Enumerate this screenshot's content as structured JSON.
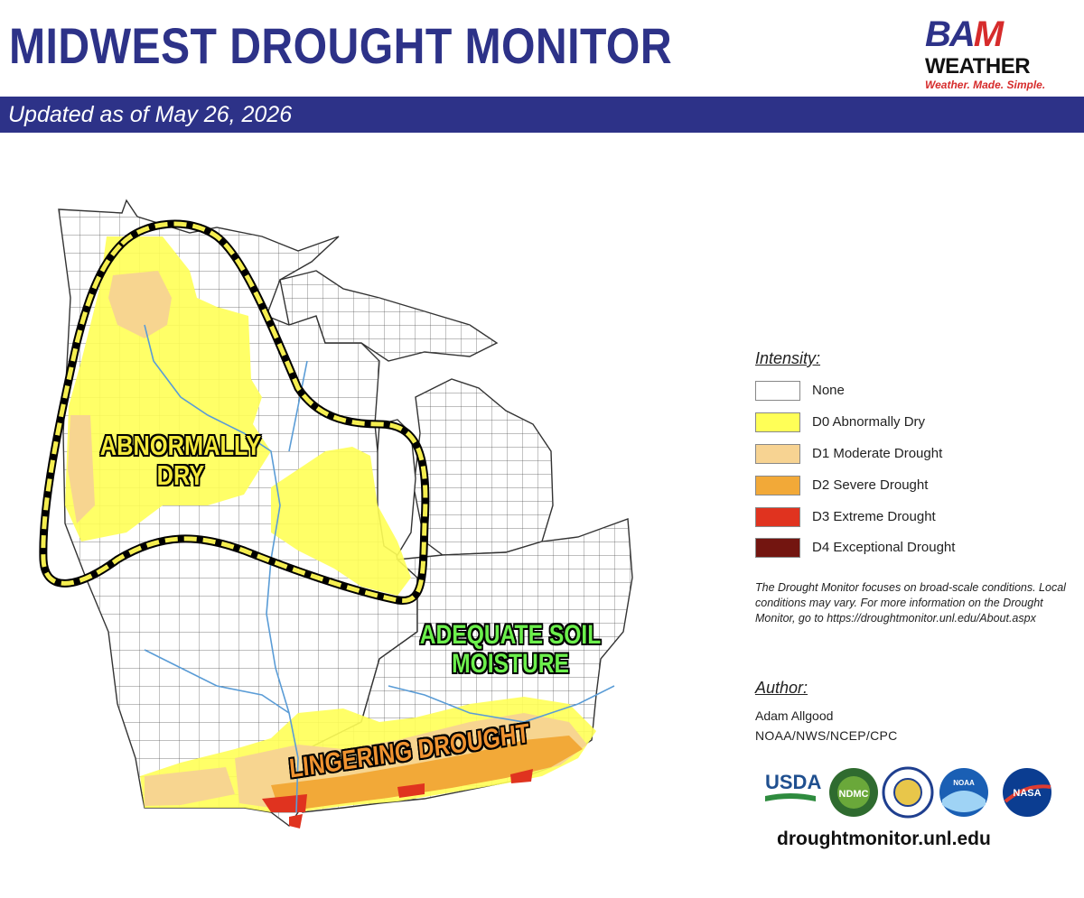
{
  "header": {
    "title": "MIDWEST DROUGHT MONITOR",
    "banner": "Updated as of May 26, 2026"
  },
  "brand_logo": {
    "mark_a": "BA",
    "mark_b": "M",
    "word": "WEATHER",
    "tagline": "Weather. Made. Simple."
  },
  "map": {
    "labels": {
      "abnormally_dry": "ABNORMALLY\nDRY",
      "adequate_soil": "ADEQUATE SOIL\nMOISTURE",
      "lingering_drought": "LINGERING DROUGHT"
    },
    "outline_color": "#f5ee50"
  },
  "legend": {
    "title": "Intensity:",
    "items": [
      {
        "label": "None",
        "color": "#ffffff"
      },
      {
        "label": "D0 Abnormally Dry",
        "color": "#ffff57"
      },
      {
        "label": "D1 Moderate Drought",
        "color": "#f7d392"
      },
      {
        "label": "D2 Severe Drought",
        "color": "#f2a938"
      },
      {
        "label": "D3 Extreme Drought",
        "color": "#e0331f"
      },
      {
        "label": "D4 Exceptional Drought",
        "color": "#731510"
      }
    ],
    "note": "The Drought Monitor focuses on broad-scale conditions. Local conditions may vary. For more information on the Drought Monitor, go to https://droughtmonitor.unl.edu/About.aspx"
  },
  "author": {
    "title": "Author:",
    "name": "Adam Allgood",
    "org": "NOAA/NWS/NCEP/CPC"
  },
  "partner_logos": {
    "usda": "USDA",
    "ndmc": "NDMC",
    "noaa": "NOAA",
    "nasa": "NASA"
  },
  "website": "droughtmonitor.unl.edu"
}
